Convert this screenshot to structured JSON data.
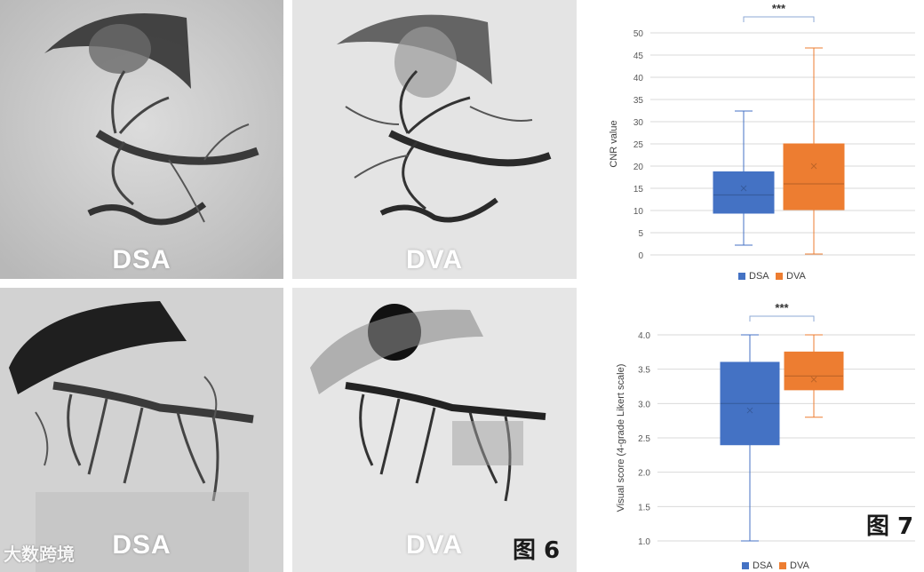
{
  "panels": [
    {
      "label": "DSA",
      "tone": "light"
    },
    {
      "label": "DVA",
      "tone": "light"
    },
    {
      "label": "DSA",
      "tone": "dark"
    },
    {
      "label": "DVA",
      "tone": "dark"
    }
  ],
  "figure_labels": {
    "left": "图 6",
    "right": "图 7"
  },
  "watermark": "大数跨境",
  "colors": {
    "dsa": "#4472c4",
    "dva": "#ed7d31",
    "grid": "#d9d9d9",
    "axis_text": "#595959"
  },
  "chart_data": [
    {
      "type": "box",
      "title": "",
      "xlabel": "",
      "ylabel": "CNR value",
      "ylim": [
        0,
        50
      ],
      "yticks": [
        0,
        5,
        10,
        15,
        20,
        25,
        30,
        35,
        40,
        45,
        50
      ],
      "grid": true,
      "legend": "bottom",
      "significance": "***",
      "series": [
        {
          "name": "DSA",
          "min": 2.2,
          "q1": 9.4,
          "median": 13.5,
          "q3": 18.7,
          "max": 32.4,
          "mean": 15.0
        },
        {
          "name": "DVA",
          "min": 0.2,
          "q1": 10.2,
          "median": 16.0,
          "q3": 25.0,
          "max": 46.6,
          "mean": 20.0
        }
      ]
    },
    {
      "type": "box",
      "title": "",
      "xlabel": "",
      "ylabel": "Visual score (4-grade Likert scale)",
      "ylim": [
        1.0,
        4.0
      ],
      "yticks": [
        "1.0",
        "1.5",
        "2.0",
        "2.5",
        "3.0",
        "3.5",
        "4.0"
      ],
      "grid": true,
      "legend": "bottom",
      "significance": "***",
      "series": [
        {
          "name": "DSA",
          "min": 1.0,
          "q1": 2.4,
          "median": 3.0,
          "q3": 3.6,
          "max": 4.0,
          "mean": 2.9
        },
        {
          "name": "DVA",
          "min": 2.8,
          "q1": 3.2,
          "median": 3.4,
          "q3": 3.75,
          "max": 4.0,
          "mean": 3.35
        }
      ]
    }
  ]
}
